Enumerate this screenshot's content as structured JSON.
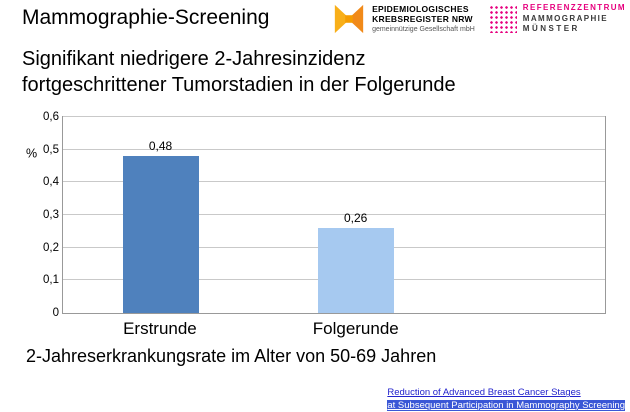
{
  "slide": {
    "title": "Mammographie-Screening",
    "subtitle_line1": "Signifikant niedrigere 2-Jahresinzidenz",
    "subtitle_line2": "fortgeschrittener Tumorstadien in der Folgerunde",
    "caption": "2-Jahreserkrankungsrate im Alter von 50-69 Jahren"
  },
  "logos": {
    "epi": {
      "line1": "EPIDEMIOLOGISCHES",
      "line2": "KREBSREGISTER NRW",
      "line3": "gemeinnützige Gesellschaft mbH",
      "accent": "#f59c00"
    },
    "ref": {
      "line1": "REFERENZZENTRUM",
      "line2": "MAMMOGRAPHIE",
      "line3": "MÜNSTER",
      "accent": "#e6007e"
    }
  },
  "footer_link": {
    "line1": "Reduction of Advanced Breast Cancer Stages",
    "line2": "at Subsequent Participation in Mammography Screening"
  },
  "chart_data": {
    "type": "bar",
    "categories": [
      "Erstrunde",
      "Folgerunde"
    ],
    "values": [
      0.48,
      0.26
    ],
    "value_labels": [
      "0,48",
      "0,26"
    ],
    "bar_colors": [
      "#4f81bd",
      "#a6c9f0"
    ],
    "title": "",
    "xlabel": "",
    "ylabel": "%",
    "ylim": [
      0,
      0.6
    ],
    "ytick_labels": [
      "0",
      "0,1",
      "0,2",
      "0,3",
      "0,4",
      "0,5",
      "0,6"
    ],
    "grid": true,
    "legend": false
  }
}
